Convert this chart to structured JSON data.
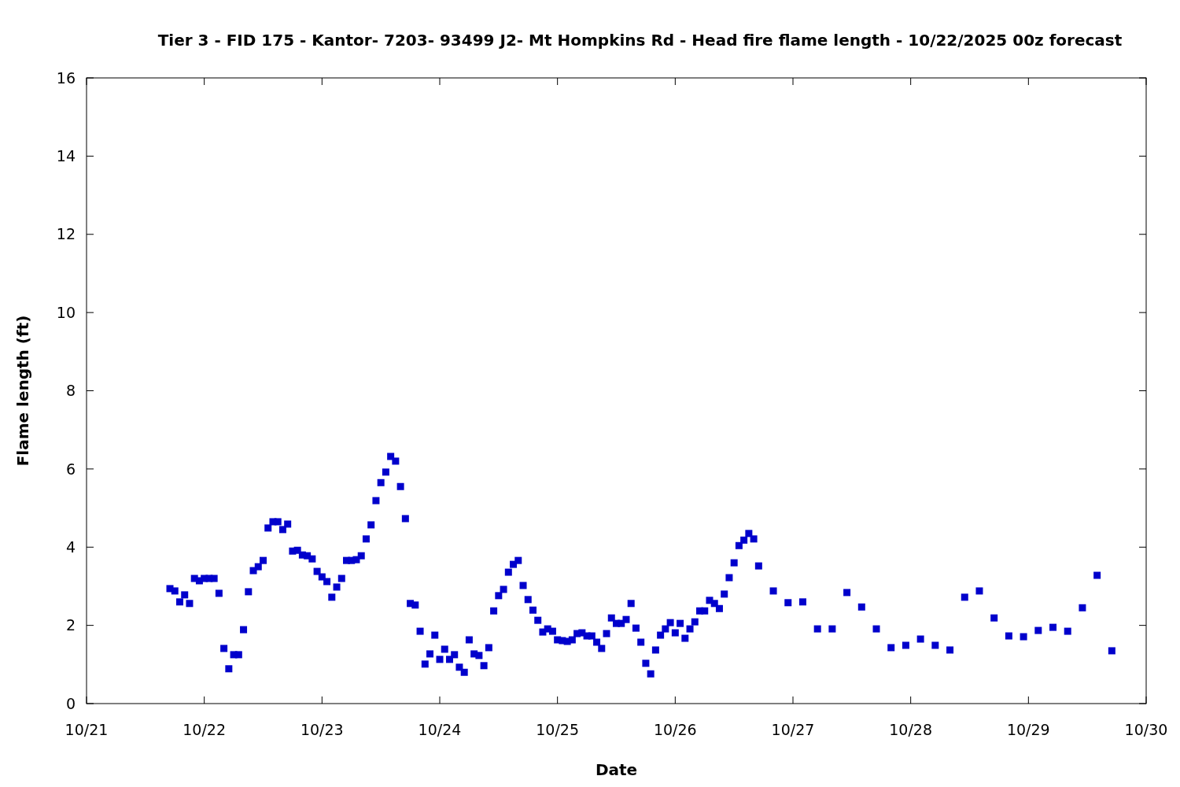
{
  "chart_data": {
    "type": "scatter",
    "title": "Tier 3 - FID 175 - Kantor- 7203- 93499 J2- Mt Hompkins Rd - Head fire flame length - 10/22/2025 00z forecast",
    "xlabel": "Date",
    "ylabel": "Flame length (ft)",
    "x": [
      "2025-10-21T17:00",
      "2025-10-21T18:00",
      "2025-10-21T19:00",
      "2025-10-21T20:00",
      "2025-10-21T21:00",
      "2025-10-21T22:00",
      "2025-10-21T23:00",
      "2025-10-22T00:00",
      "2025-10-22T01:00",
      "2025-10-22T02:00",
      "2025-10-22T03:00",
      "2025-10-22T04:00",
      "2025-10-22T05:00",
      "2025-10-22T06:00",
      "2025-10-22T07:00",
      "2025-10-22T08:00",
      "2025-10-22T09:00",
      "2025-10-22T10:00",
      "2025-10-22T11:00",
      "2025-10-22T12:00",
      "2025-10-22T13:00",
      "2025-10-22T14:00",
      "2025-10-22T15:00",
      "2025-10-22T16:00",
      "2025-10-22T17:00",
      "2025-10-22T18:00",
      "2025-10-22T19:00",
      "2025-10-22T20:00",
      "2025-10-22T21:00",
      "2025-10-22T22:00",
      "2025-10-22T23:00",
      "2025-10-23T00:00",
      "2025-10-23T01:00",
      "2025-10-23T02:00",
      "2025-10-23T03:00",
      "2025-10-23T04:00",
      "2025-10-23T05:00",
      "2025-10-23T06:00",
      "2025-10-23T07:00",
      "2025-10-23T08:00",
      "2025-10-23T09:00",
      "2025-10-23T10:00",
      "2025-10-23T11:00",
      "2025-10-23T12:00",
      "2025-10-23T13:00",
      "2025-10-23T14:00",
      "2025-10-23T15:00",
      "2025-10-23T16:00",
      "2025-10-23T17:00",
      "2025-10-23T18:00",
      "2025-10-23T19:00",
      "2025-10-23T20:00",
      "2025-10-23T21:00",
      "2025-10-23T22:00",
      "2025-10-23T23:00",
      "2025-10-24T00:00",
      "2025-10-24T01:00",
      "2025-10-24T02:00",
      "2025-10-24T03:00",
      "2025-10-24T04:00",
      "2025-10-24T05:00",
      "2025-10-24T06:00",
      "2025-10-24T07:00",
      "2025-10-24T08:00",
      "2025-10-24T09:00",
      "2025-10-24T10:00",
      "2025-10-24T11:00",
      "2025-10-24T12:00",
      "2025-10-24T13:00",
      "2025-10-24T14:00",
      "2025-10-24T15:00",
      "2025-10-24T16:00",
      "2025-10-24T17:00",
      "2025-10-24T18:00",
      "2025-10-24T19:00",
      "2025-10-24T20:00",
      "2025-10-24T21:00",
      "2025-10-24T22:00",
      "2025-10-24T23:00",
      "2025-10-25T00:00",
      "2025-10-25T01:00",
      "2025-10-25T02:00",
      "2025-10-25T03:00",
      "2025-10-25T04:00",
      "2025-10-25T05:00",
      "2025-10-25T06:00",
      "2025-10-25T07:00",
      "2025-10-25T08:00",
      "2025-10-25T09:00",
      "2025-10-25T10:00",
      "2025-10-25T11:00",
      "2025-10-25T12:00",
      "2025-10-25T13:00",
      "2025-10-25T14:00",
      "2025-10-25T15:00",
      "2025-10-25T16:00",
      "2025-10-25T17:00",
      "2025-10-25T18:00",
      "2025-10-25T19:00",
      "2025-10-25T20:00",
      "2025-10-25T21:00",
      "2025-10-25T22:00",
      "2025-10-25T23:00",
      "2025-10-26T00:00",
      "2025-10-26T01:00",
      "2025-10-26T02:00",
      "2025-10-26T03:00",
      "2025-10-26T04:00",
      "2025-10-26T05:00",
      "2025-10-26T06:00",
      "2025-10-26T07:00",
      "2025-10-26T08:00",
      "2025-10-26T09:00",
      "2025-10-26T10:00",
      "2025-10-26T11:00",
      "2025-10-26T12:00",
      "2025-10-26T13:00",
      "2025-10-26T14:00",
      "2025-10-26T15:00",
      "2025-10-26T16:00",
      "2025-10-26T17:00",
      "2025-10-26T20:00",
      "2025-10-26T23:00",
      "2025-10-27T02:00",
      "2025-10-27T05:00",
      "2025-10-27T08:00",
      "2025-10-27T11:00",
      "2025-10-27T14:00",
      "2025-10-27T17:00",
      "2025-10-27T20:00",
      "2025-10-27T23:00",
      "2025-10-28T02:00",
      "2025-10-28T05:00",
      "2025-10-28T08:00",
      "2025-10-28T11:00",
      "2025-10-28T14:00",
      "2025-10-28T17:00",
      "2025-10-28T20:00",
      "2025-10-28T23:00",
      "2025-10-29T02:00",
      "2025-10-29T05:00",
      "2025-10-29T08:00",
      "2025-10-29T11:00",
      "2025-10-29T14:00",
      "2025-10-29T17:00"
    ],
    "series": [
      {
        "color": "#0000cc",
        "values": [
          2.94,
          2.88,
          2.6,
          2.78,
          2.56,
          3.2,
          3.14,
          3.2,
          3.2,
          3.2,
          2.82,
          1.41,
          0.89,
          1.25,
          1.25,
          1.89,
          2.86,
          3.4,
          3.5,
          3.66,
          4.49,
          4.65,
          4.65,
          4.45,
          4.59,
          3.9,
          3.92,
          3.8,
          3.78,
          3.7,
          3.38,
          3.24,
          3.12,
          2.72,
          2.98,
          3.2,
          3.66,
          3.66,
          3.68,
          3.78,
          4.21,
          4.57,
          5.19,
          5.65,
          5.92,
          6.32,
          6.2,
          5.55,
          4.73,
          2.56,
          2.52,
          1.85,
          1.01,
          1.27,
          1.75,
          1.13,
          1.39,
          1.13,
          1.25,
          0.93,
          0.8,
          1.63,
          1.27,
          1.23,
          0.97,
          1.43,
          2.37,
          2.76,
          2.92,
          3.36,
          3.56,
          3.66,
          3.02,
          2.66,
          2.39,
          2.13,
          1.83,
          1.91,
          1.85,
          1.63,
          1.61,
          1.59,
          1.63,
          1.79,
          1.81,
          1.73,
          1.73,
          1.57,
          1.41,
          1.79,
          2.19,
          2.05,
          2.05,
          2.15,
          2.56,
          1.93,
          1.57,
          1.03,
          0.76,
          1.37,
          1.75,
          1.91,
          2.07,
          1.81,
          2.05,
          1.67,
          1.91,
          2.09,
          2.37,
          2.37,
          2.64,
          2.56,
          2.43,
          2.8,
          3.22,
          3.6,
          4.04,
          4.18,
          4.35,
          4.21,
          3.52,
          2.88,
          2.58,
          2.6,
          1.91,
          1.91,
          2.84,
          2.47,
          1.91,
          1.43,
          1.49,
          1.65,
          1.49,
          1.37,
          2.72,
          2.88,
          2.19,
          1.73,
          1.71,
          1.87,
          1.95,
          1.85,
          2.45,
          3.28,
          1.35
        ]
      }
    ],
    "xlim": [
      "2025-10-21",
      "2025-10-30"
    ],
    "xticks": [
      {
        "value": "2025-10-21",
        "label": "10/21"
      },
      {
        "value": "2025-10-22",
        "label": "10/22"
      },
      {
        "value": "2025-10-23",
        "label": "10/23"
      },
      {
        "value": "2025-10-24",
        "label": "10/24"
      },
      {
        "value": "2025-10-25",
        "label": "10/25"
      },
      {
        "value": "2025-10-26",
        "label": "10/26"
      },
      {
        "value": "2025-10-27",
        "label": "10/27"
      },
      {
        "value": "2025-10-28",
        "label": "10/28"
      },
      {
        "value": "2025-10-29",
        "label": "10/29"
      },
      {
        "value": "2025-10-30",
        "label": "10/30"
      }
    ],
    "ylim": [
      0,
      16
    ],
    "yticks": [
      0,
      2,
      4,
      6,
      8,
      10,
      12,
      14,
      16
    ],
    "marker": "square",
    "grid": false
  }
}
